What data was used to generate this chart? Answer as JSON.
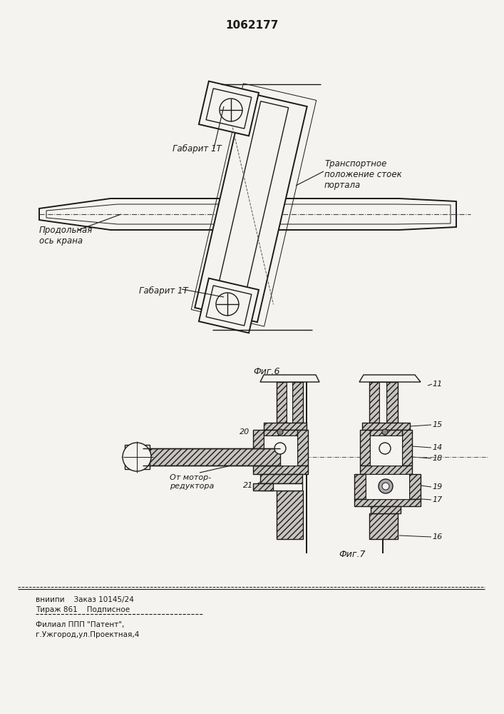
{
  "title": "1062177",
  "bg_color": "#f5f3ef",
  "line_color": "#1a1a1a",
  "fig6_label": "Фиг.6",
  "fig7_label": "Фиг.7",
  "label_gabarit1_top": "Габарит 1Т",
  "label_gabarit1_bot": "Габарит 1Т",
  "label_prodolnaya": "Продольная\nось крана",
  "label_transport": "Транспортное\nположение стоек\nпортала",
  "label_motor": "От мотор-\nредуктора",
  "label_vniipi1": "вниипи    Заказ 10145/24",
  "label_vniipi2": "Тираж 861    Подписное",
  "label_filial1": "Филиал ППП \"Патент\",",
  "label_filial2": "г.Ужгород,ул.Проектная,4"
}
